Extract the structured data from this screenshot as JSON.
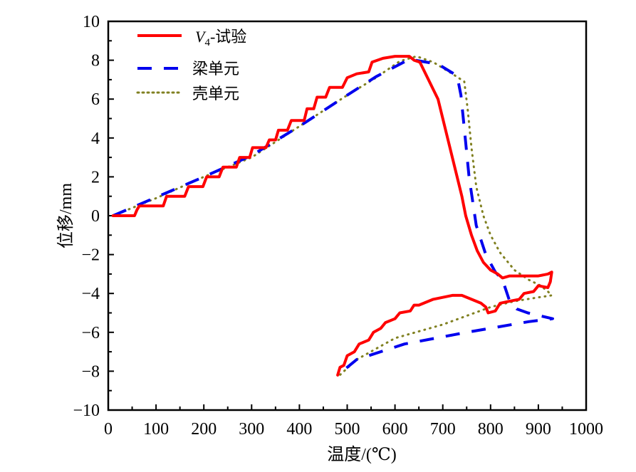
{
  "chart_data": {
    "type": "line",
    "title": "",
    "xlabel": "温度/(℃)",
    "ylabel": "位移/mm",
    "xlim": [
      0,
      1000
    ],
    "ylim": [
      -10,
      10
    ],
    "xticks": [
      0,
      100,
      200,
      300,
      400,
      500,
      600,
      700,
      800,
      900,
      1000
    ],
    "xtick_labels": [
      "0",
      "100",
      "200",
      "300",
      "400",
      "500",
      "600",
      "700",
      "800",
      "900",
      "1000"
    ],
    "yticks": [
      -10,
      -8,
      -6,
      -4,
      -2,
      0,
      2,
      4,
      6,
      8,
      10
    ],
    "ytick_labels": [
      "−10",
      "−8",
      "−6",
      "−4",
      "−2",
      "0",
      "2",
      "4",
      "6",
      "8",
      "10"
    ],
    "grid": false,
    "legend_position": "top-left",
    "series": [
      {
        "name": "V4-试验",
        "legend_main": "V",
        "legend_sub": "4",
        "legend_rest": "-试验",
        "color": "#ff0000",
        "style": "solid",
        "points": [
          [
            10,
            0
          ],
          [
            55,
            0
          ],
          [
            60,
            0.3
          ],
          [
            65,
            0.5
          ],
          [
            115,
            0.5
          ],
          [
            122,
            1.0
          ],
          [
            160,
            1.0
          ],
          [
            168,
            1.5
          ],
          [
            198,
            1.5
          ],
          [
            206,
            2.0
          ],
          [
            232,
            2.0
          ],
          [
            240,
            2.5
          ],
          [
            268,
            2.5
          ],
          [
            275,
            3.0
          ],
          [
            296,
            3.0
          ],
          [
            302,
            3.5
          ],
          [
            330,
            3.5
          ],
          [
            337,
            3.9
          ],
          [
            350,
            3.9
          ],
          [
            356,
            4.4
          ],
          [
            375,
            4.4
          ],
          [
            383,
            4.9
          ],
          [
            410,
            4.9
          ],
          [
            416,
            5.5
          ],
          [
            430,
            5.5
          ],
          [
            437,
            6.1
          ],
          [
            455,
            6.1
          ],
          [
            463,
            6.6
          ],
          [
            490,
            6.6
          ],
          [
            500,
            7.1
          ],
          [
            520,
            7.3
          ],
          [
            545,
            7.4
          ],
          [
            552,
            7.9
          ],
          [
            575,
            8.1
          ],
          [
            600,
            8.2
          ],
          [
            630,
            8.2
          ],
          [
            640,
            8.0
          ],
          [
            652,
            7.9
          ],
          [
            660,
            7.5
          ],
          [
            670,
            7.0
          ],
          [
            680,
            6.5
          ],
          [
            690,
            6.0
          ],
          [
            700,
            5.0
          ],
          [
            710,
            4.0
          ],
          [
            720,
            3.0
          ],
          [
            730,
            2.0
          ],
          [
            740,
            1.0
          ],
          [
            748,
            0.0
          ],
          [
            760,
            -1.0
          ],
          [
            772,
            -1.8
          ],
          [
            785,
            -2.4
          ],
          [
            800,
            -2.8
          ],
          [
            815,
            -3.0
          ],
          [
            825,
            -3.2
          ],
          [
            840,
            -3.1
          ],
          [
            870,
            -3.1
          ],
          [
            900,
            -3.1
          ],
          [
            920,
            -3.0
          ],
          [
            928,
            -2.9
          ],
          [
            925,
            -3.4
          ],
          [
            920,
            -3.7
          ],
          [
            900,
            -3.6
          ],
          [
            890,
            -3.9
          ],
          [
            870,
            -4.0
          ],
          [
            860,
            -4.3
          ],
          [
            840,
            -4.4
          ],
          [
            820,
            -4.5
          ],
          [
            810,
            -4.9
          ],
          [
            795,
            -5.0
          ],
          [
            790,
            -4.7
          ],
          [
            780,
            -4.5
          ],
          [
            760,
            -4.3
          ],
          [
            740,
            -4.1
          ],
          [
            720,
            -4.1
          ],
          [
            700,
            -4.2
          ],
          [
            680,
            -4.3
          ],
          [
            660,
            -4.5
          ],
          [
            650,
            -4.6
          ],
          [
            640,
            -4.6
          ],
          [
            632,
            -4.9
          ],
          [
            610,
            -5.0
          ],
          [
            600,
            -5.3
          ],
          [
            580,
            -5.5
          ],
          [
            570,
            -5.8
          ],
          [
            555,
            -6.0
          ],
          [
            545,
            -6.4
          ],
          [
            525,
            -6.6
          ],
          [
            515,
            -7.0
          ],
          [
            500,
            -7.2
          ],
          [
            493,
            -7.7
          ],
          [
            485,
            -7.8
          ],
          [
            480,
            -8.2
          ]
        ]
      },
      {
        "name": "梁单元",
        "color": "#0000ee",
        "style": "dashed",
        "points": [
          [
            10,
            0
          ],
          [
            100,
            0.95
          ],
          [
            200,
            2.0
          ],
          [
            300,
            3.1
          ],
          [
            400,
            4.6
          ],
          [
            500,
            6.2
          ],
          [
            560,
            7.15
          ],
          [
            630,
            8.05
          ],
          [
            690,
            7.8
          ],
          [
            730,
            7.2
          ],
          [
            738,
            6.2
          ],
          [
            745,
            4.5
          ],
          [
            755,
            2.0
          ],
          [
            770,
            -0.5
          ],
          [
            790,
            -2.0
          ],
          [
            810,
            -2.9
          ],
          [
            825,
            -3.3
          ],
          [
            840,
            -4.4
          ],
          [
            855,
            -4.8
          ],
          [
            878,
            -5.0
          ],
          [
            930,
            -5.3
          ],
          [
            880,
            -5.45
          ],
          [
            750,
            -6.0
          ],
          [
            620,
            -6.6
          ],
          [
            520,
            -7.4
          ],
          [
            480,
            -8.2
          ]
        ]
      },
      {
        "name": "壳单元",
        "color": "#808020",
        "style": "dotted",
        "points": [
          [
            10,
            0
          ],
          [
            100,
            0.9
          ],
          [
            200,
            2.0
          ],
          [
            300,
            3.0
          ],
          [
            400,
            4.6
          ],
          [
            500,
            6.2
          ],
          [
            560,
            7.1
          ],
          [
            610,
            7.95
          ],
          [
            645,
            8.2
          ],
          [
            680,
            7.9
          ],
          [
            720,
            7.3
          ],
          [
            745,
            6.9
          ],
          [
            752,
            5.5
          ],
          [
            760,
            3.5
          ],
          [
            770,
            1.5
          ],
          [
            785,
            0.0
          ],
          [
            800,
            -1.0
          ],
          [
            820,
            -1.9
          ],
          [
            850,
            -2.8
          ],
          [
            880,
            -3.3
          ],
          [
            905,
            -3.6
          ],
          [
            920,
            -3.9
          ],
          [
            928,
            -4.1
          ],
          [
            900,
            -4.2
          ],
          [
            850,
            -4.4
          ],
          [
            800,
            -4.7
          ],
          [
            700,
            -5.6
          ],
          [
            600,
            -6.3
          ],
          [
            520,
            -7.4
          ],
          [
            480,
            -8.3
          ]
        ]
      }
    ]
  }
}
